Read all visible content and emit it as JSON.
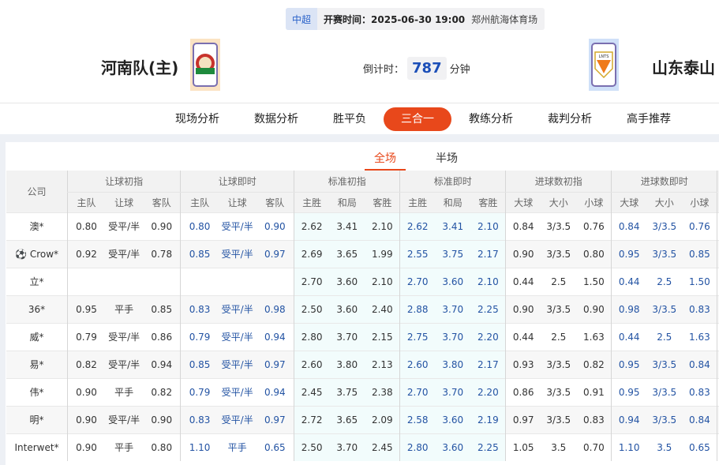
{
  "match": {
    "league": "中超",
    "start_time": "开赛时间：2025-06-30 19:00",
    "venue": "郑州航海体育场",
    "home_team": "河南队(主)",
    "away_team": "山东泰山",
    "countdown_label": "倒计时：",
    "countdown_value": "787",
    "countdown_unit": "分钟",
    "away_logo_text": "LNTS"
  },
  "nav": {
    "items": [
      "现场分析",
      "数据分析",
      "胜平负",
      "三合一",
      "教练分析",
      "裁判分析",
      "高手推荐"
    ],
    "active": "三合一"
  },
  "subtabs": {
    "items": [
      "全场",
      "半场"
    ],
    "active": "全场"
  },
  "colors": {
    "accent": "#e8481b",
    "live_value": "#2353a3"
  },
  "table": {
    "company_header": "公司",
    "groups": [
      "让球初指",
      "让球即时",
      "标准初指",
      "标准即时",
      "进球数初指",
      "进球数即时"
    ],
    "subheaders": [
      [
        "主队",
        "让球",
        "客队"
      ],
      [
        "主队",
        "让球",
        "客队"
      ],
      [
        "主胜",
        "和局",
        "客胜"
      ],
      [
        "主胜",
        "和局",
        "客胜"
      ],
      [
        "大球",
        "大小",
        "小球"
      ],
      [
        "大球",
        "大小",
        "小球"
      ]
    ],
    "rows": [
      {
        "company": "澳*",
        "values": [
          "0.80",
          "受平/半",
          "0.90",
          "0.80",
          "受平/半",
          "0.90",
          "2.62",
          "3.41",
          "2.10",
          "2.62",
          "3.41",
          "2.10",
          "0.84",
          "3/3.5",
          "0.76",
          "0.84",
          "3/3.5",
          "0.76"
        ]
      },
      {
        "company": "Crow*",
        "icon": "soccer-ball-icon",
        "values": [
          "0.92",
          "受平/半",
          "0.78",
          "0.85",
          "受平/半",
          "0.97",
          "2.69",
          "3.65",
          "1.99",
          "2.55",
          "3.75",
          "2.17",
          "0.90",
          "3/3.5",
          "0.80",
          "0.95",
          "3/3.5",
          "0.85"
        ]
      },
      {
        "company": "立*",
        "values": [
          "",
          "",
          "",
          "",
          "",
          "",
          "2.70",
          "3.60",
          "2.10",
          "2.70",
          "3.60",
          "2.10",
          "0.44",
          "2.5",
          "1.50",
          "0.44",
          "2.5",
          "1.50"
        ]
      },
      {
        "company": "36*",
        "values": [
          "0.95",
          "平手",
          "0.85",
          "0.83",
          "受平/半",
          "0.98",
          "2.50",
          "3.60",
          "2.40",
          "2.88",
          "3.70",
          "2.25",
          "0.90",
          "3/3.5",
          "0.90",
          "0.98",
          "3/3.5",
          "0.83"
        ]
      },
      {
        "company": "威*",
        "values": [
          "0.79",
          "受平/半",
          "0.86",
          "0.79",
          "受平/半",
          "0.94",
          "2.80",
          "3.70",
          "2.15",
          "2.75",
          "3.70",
          "2.20",
          "0.44",
          "2.5",
          "1.63",
          "0.44",
          "2.5",
          "1.63"
        ]
      },
      {
        "company": "易*",
        "values": [
          "0.82",
          "受平/半",
          "0.94",
          "0.85",
          "受平/半",
          "0.97",
          "2.60",
          "3.80",
          "2.13",
          "2.60",
          "3.80",
          "2.17",
          "0.93",
          "3/3.5",
          "0.82",
          "0.95",
          "3/3.5",
          "0.84"
        ]
      },
      {
        "company": "伟*",
        "values": [
          "0.90",
          "平手",
          "0.82",
          "0.79",
          "受平/半",
          "0.94",
          "2.45",
          "3.75",
          "2.38",
          "2.70",
          "3.70",
          "2.20",
          "0.86",
          "3/3.5",
          "0.91",
          "0.95",
          "3/3.5",
          "0.83"
        ]
      },
      {
        "company": "明*",
        "values": [
          "0.90",
          "受平/半",
          "0.90",
          "0.83",
          "受平/半",
          "0.97",
          "2.72",
          "3.65",
          "2.09",
          "2.58",
          "3.60",
          "2.19",
          "0.97",
          "3/3.5",
          "0.83",
          "0.94",
          "3/3.5",
          "0.84"
        ]
      },
      {
        "company": "Interwet*",
        "values": [
          "0.90",
          "平手",
          "0.80",
          "1.10",
          "平手",
          "0.65",
          "2.50",
          "3.70",
          "2.45",
          "2.80",
          "3.60",
          "2.25",
          "1.05",
          "3.5",
          "0.70",
          "1.10",
          "3.5",
          "0.65"
        ]
      }
    ]
  }
}
